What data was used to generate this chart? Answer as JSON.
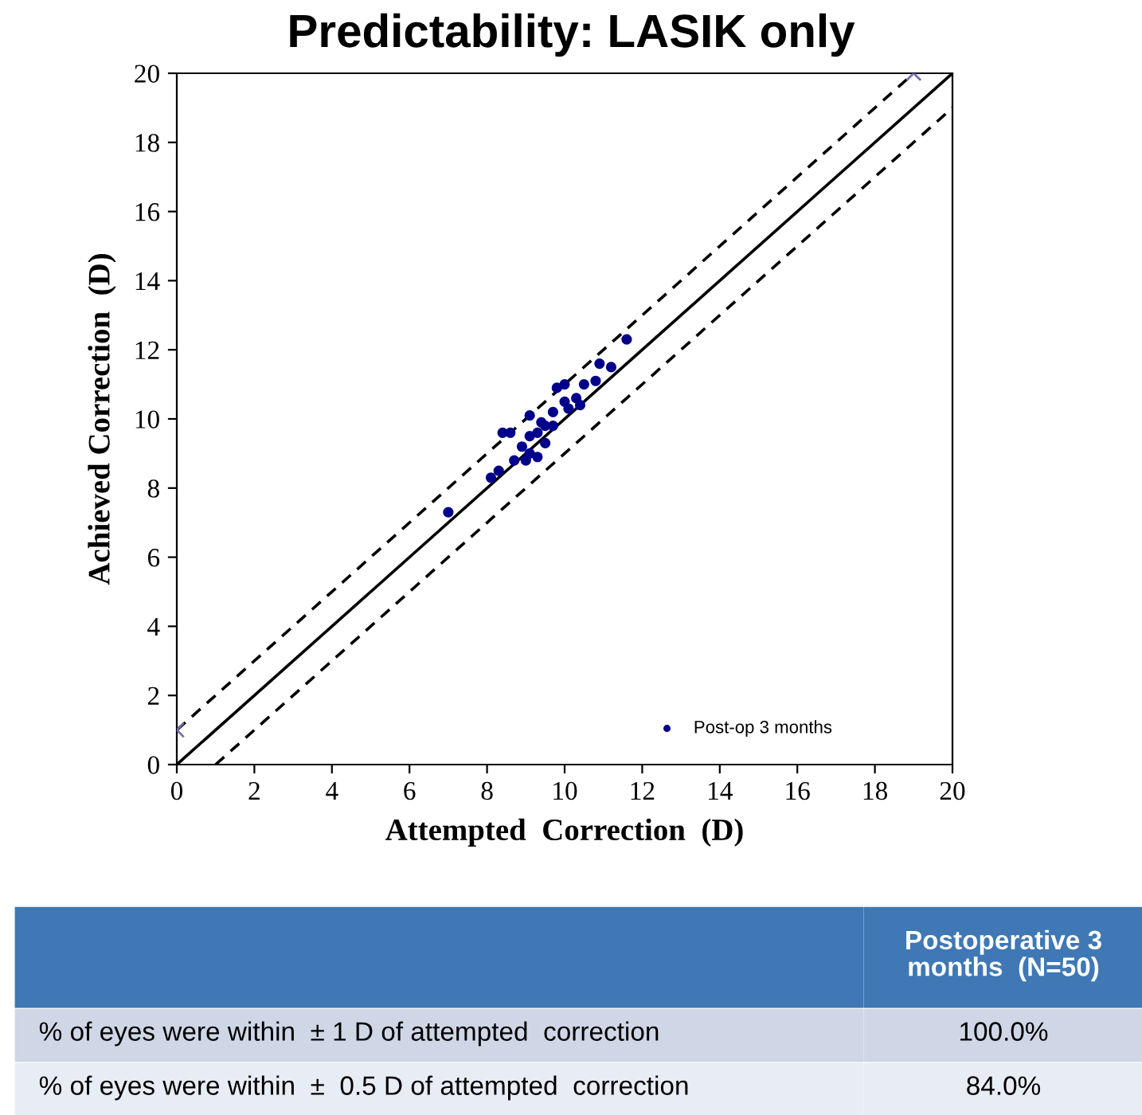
{
  "chart_data": {
    "type": "scatter",
    "title": "Predictability: LASIK only",
    "xlabel": "Attempted  Correction  (D)",
    "ylabel": "Achieved Correction  (D)",
    "xlim": [
      0,
      20
    ],
    "ylim": [
      0,
      20
    ],
    "xticks": [
      0,
      2,
      4,
      6,
      8,
      10,
      12,
      14,
      16,
      18,
      20
    ],
    "yticks": [
      0,
      2,
      4,
      6,
      8,
      10,
      12,
      14,
      16,
      18,
      20
    ],
    "grid": false,
    "legend": "bottom right",
    "series": [
      {
        "name": "Post-op 3 months",
        "marker": "circle",
        "color": "#00008b",
        "x": [
          7.0,
          11.6,
          10.9,
          11.2,
          10.8,
          10.5,
          10.0,
          9.8,
          10.0,
          10.3,
          10.4,
          10.1,
          9.7,
          9.1,
          8.4,
          8.6,
          9.4,
          9.5,
          9.3,
          9.1,
          9.7,
          8.9,
          9.1,
          9.3,
          9.0,
          8.7,
          8.3,
          8.1,
          9.5
        ],
        "values": [
          7.3,
          12.3,
          11.6,
          11.5,
          11.1,
          11.0,
          11.0,
          10.9,
          10.5,
          10.6,
          10.4,
          10.3,
          10.2,
          10.1,
          9.6,
          9.6,
          9.9,
          9.8,
          9.6,
          9.5,
          9.8,
          9.2,
          9.0,
          8.9,
          8.8,
          8.8,
          8.5,
          8.3,
          9.3
        ]
      },
      {
        "type": "line",
        "color": "#000000",
        "line_style": "solid",
        "x": [
          0,
          20
        ],
        "values": [
          0,
          20
        ]
      },
      {
        "type": "line",
        "color": "#000000",
        "line_style": "dashed",
        "x": [
          0,
          19
        ],
        "values": [
          1,
          20
        ]
      },
      {
        "type": "line",
        "color": "#000000",
        "line_style": "dashed",
        "x": [
          1,
          20
        ],
        "values": [
          0,
          19
        ]
      },
      {
        "type": "scatter",
        "marker": "cross",
        "color": "#7b68b0",
        "x": [
          0,
          19
        ],
        "values": [
          1,
          20
        ]
      }
    ],
    "annotations": [
      "Postoperative 3\nmonths  (N=50)",
      "% of eyes were within  ± 1 D of attempted  correction",
      "100.0%",
      "% of eyes were within  ±  0.5 D of attempted  correction",
      "84.0%"
    ]
  }
}
